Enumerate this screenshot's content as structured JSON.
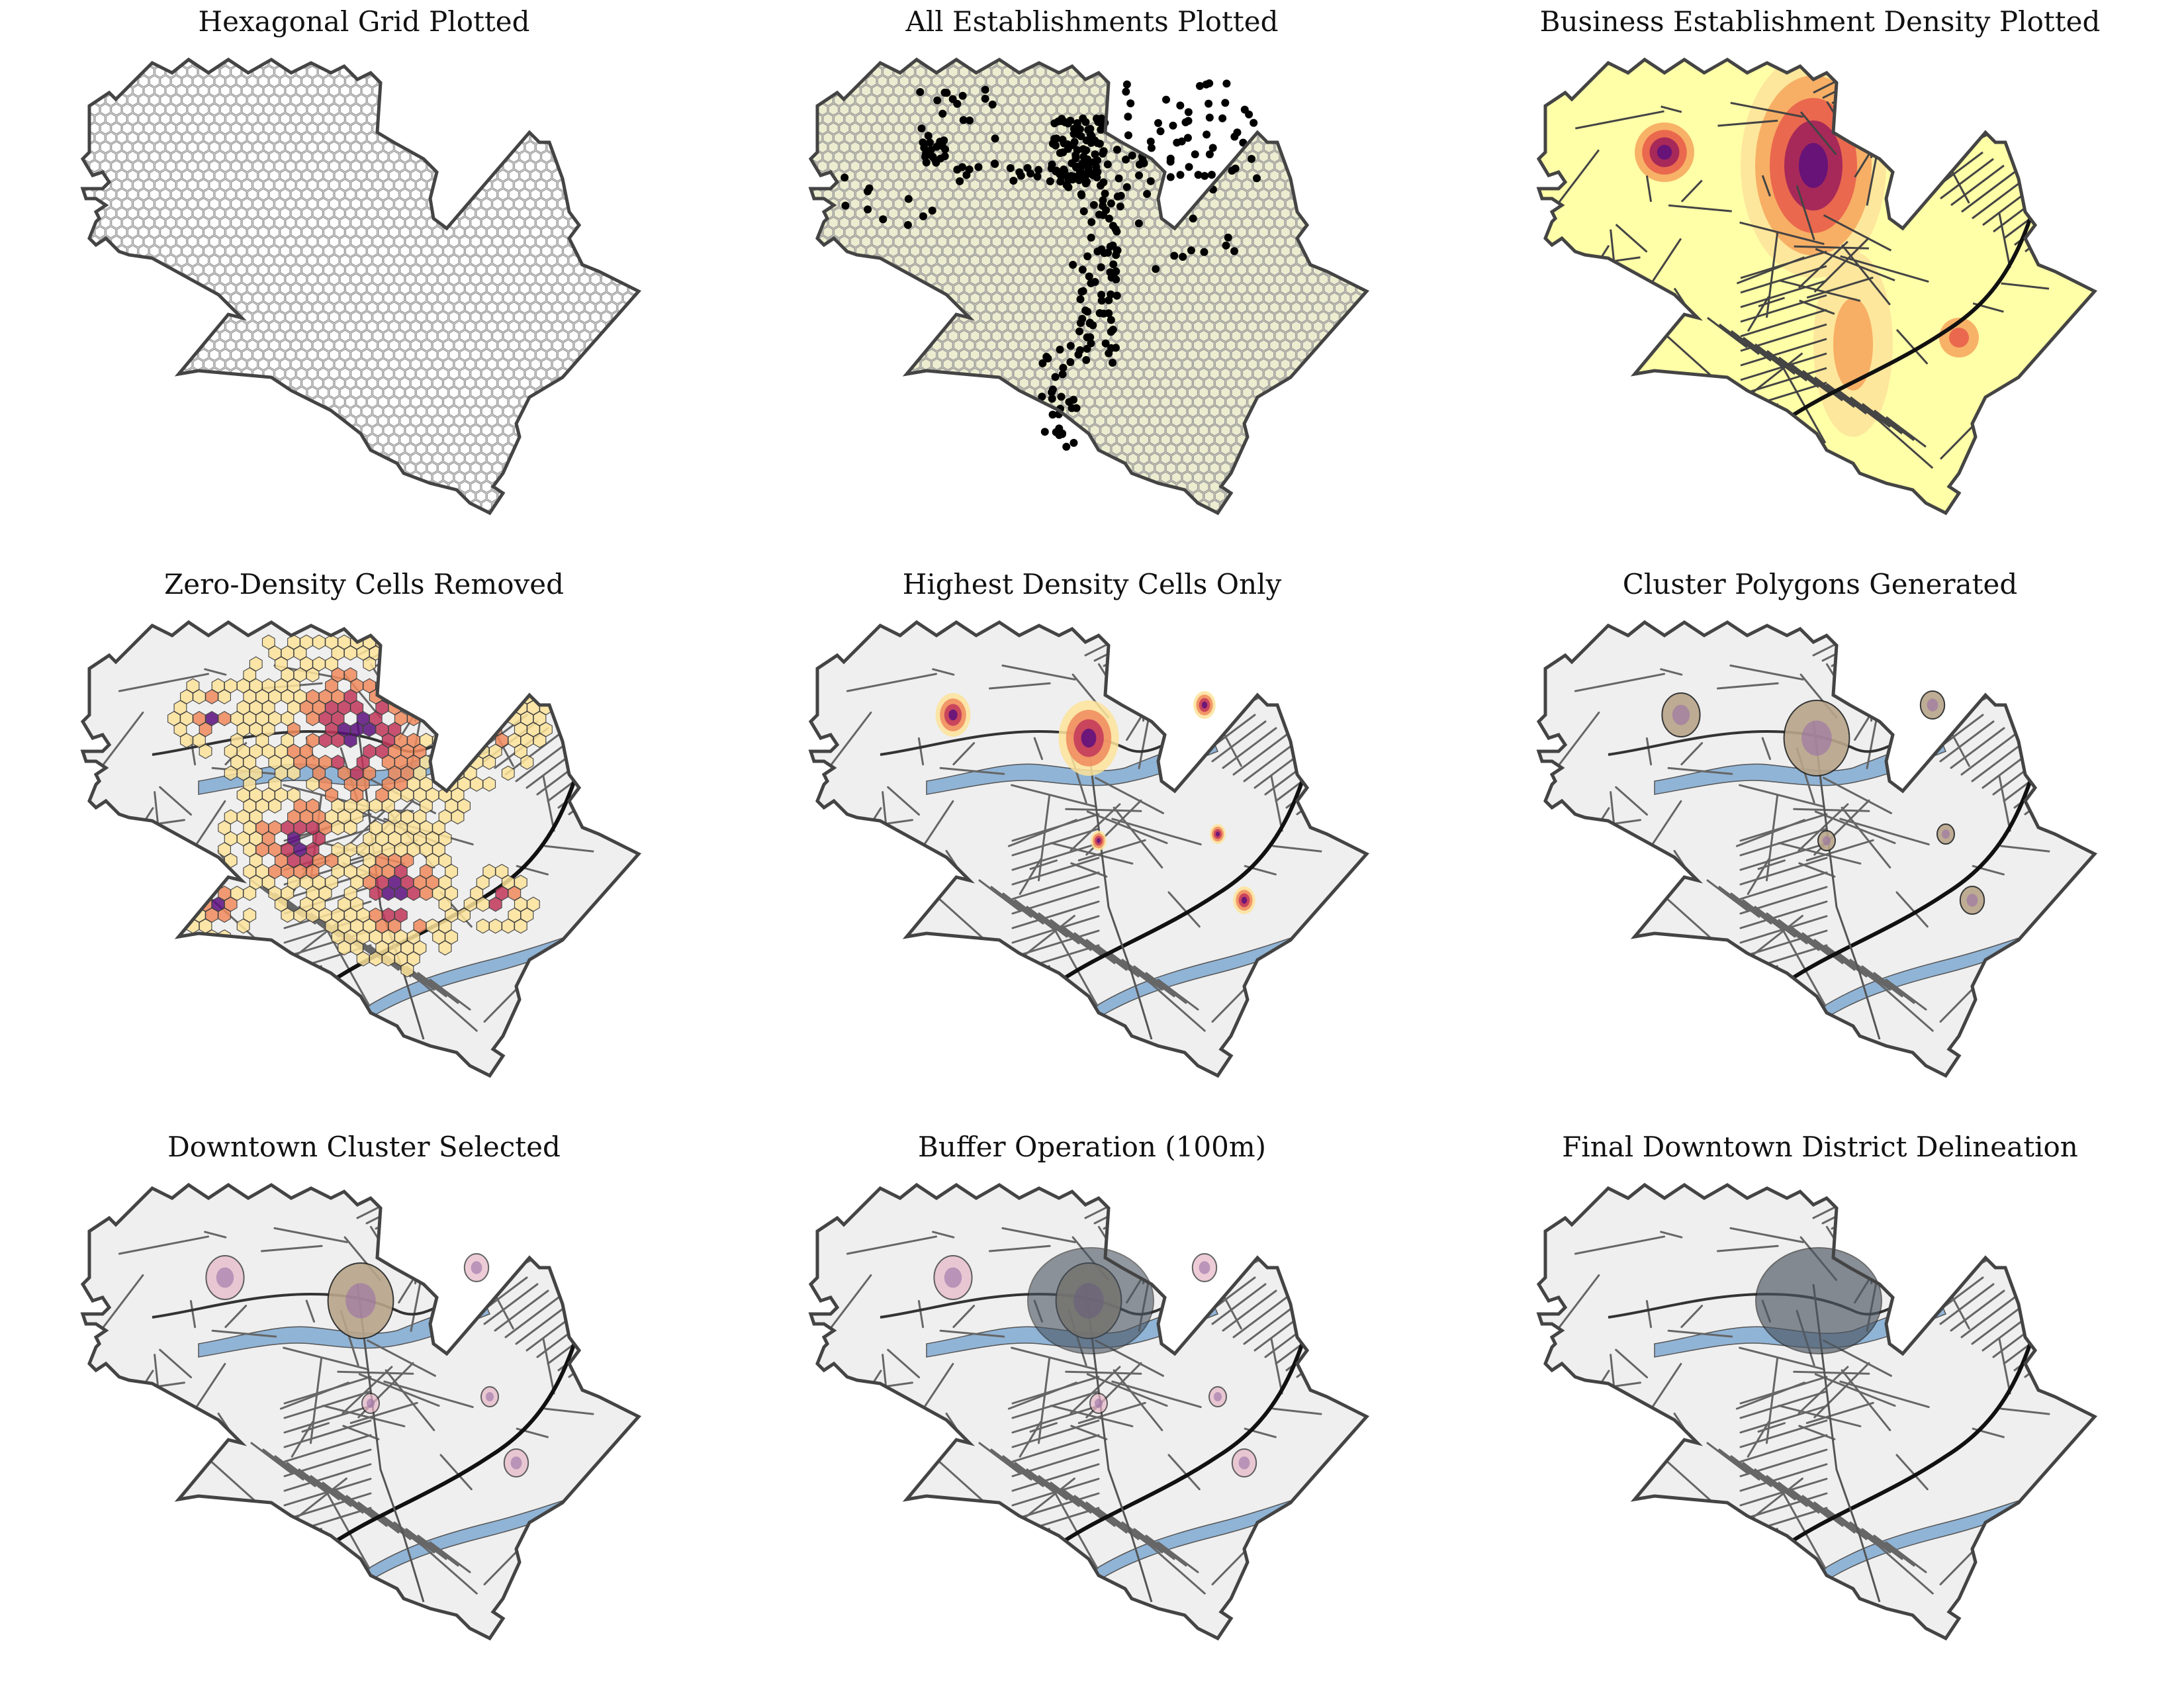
{
  "figure": {
    "panels": [
      {
        "title": "Hexagonal Grid Plotted",
        "stage": "hexgrid"
      },
      {
        "title": "All Establishments Plotted",
        "stage": "points"
      },
      {
        "title": "Business Establishment Density Plotted",
        "stage": "density"
      },
      {
        "title": "Zero-Density Cells Removed",
        "stage": "nonzero"
      },
      {
        "title": "Highest Density Cells Only",
        "stage": "highest"
      },
      {
        "title": "Cluster Polygons Generated",
        "stage": "clusters"
      },
      {
        "title": "Downtown Cluster Selected",
        "stage": "selected"
      },
      {
        "title": "Buffer Operation (100m)",
        "stage": "buffer"
      },
      {
        "title": "Final Downtown District Delineation",
        "stage": "final"
      }
    ]
  },
  "colors": {
    "boundary": "#444444",
    "land": "#efefef",
    "river": "#90b4d6",
    "roads": "#666666",
    "highway": "#111111",
    "hex_fill": "#ececd0",
    "hex_stroke": "#9a9a9a",
    "density_low": "#ffffa8",
    "density_mid": "#fdc36c",
    "density_high": "#ee6a50",
    "density_peak": "#5c0f7e",
    "buffer": "#4a5460",
    "point": "#000000"
  }
}
